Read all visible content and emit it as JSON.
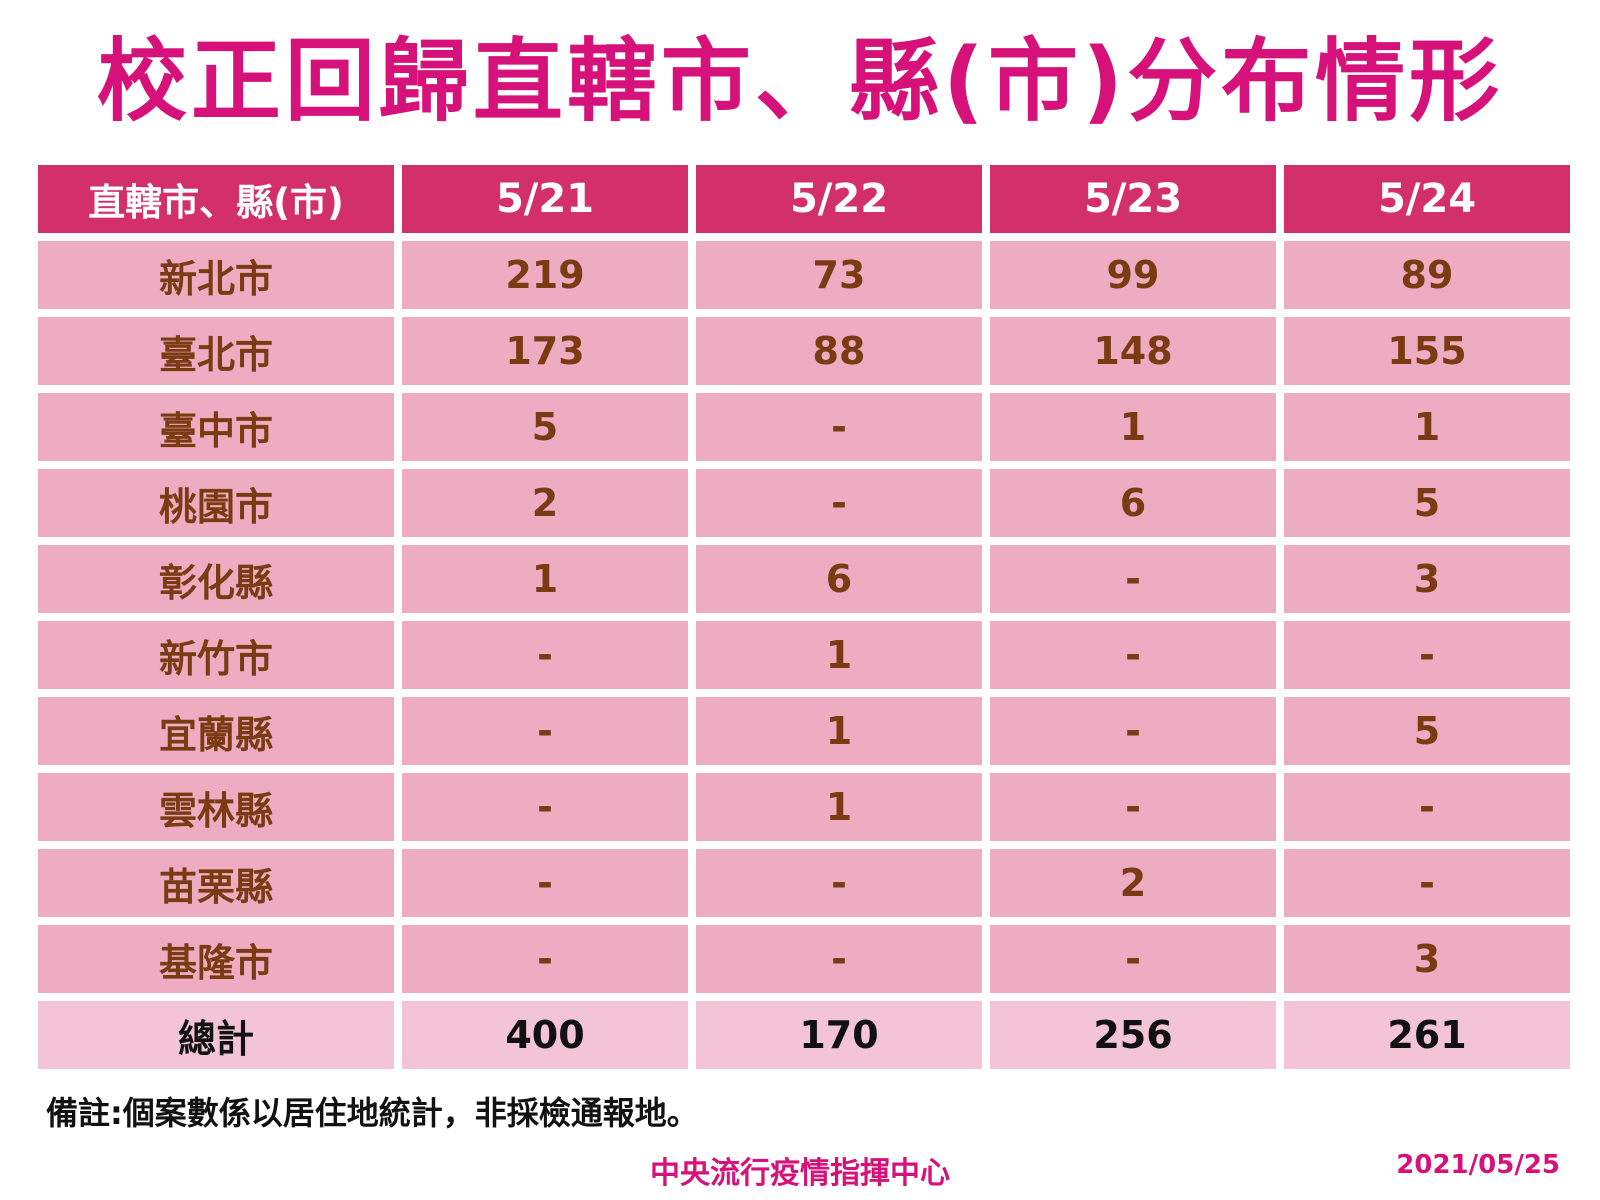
{
  "title": "校正回歸直轄市、縣(市)分布情形",
  "table": {
    "header": [
      "直轄市、縣(市)",
      "5/21",
      "5/22",
      "5/23",
      "5/24"
    ],
    "rows": [
      [
        "新北市",
        "219",
        "73",
        "99",
        "89"
      ],
      [
        "臺北市",
        "173",
        "88",
        "148",
        "155"
      ],
      [
        "臺中市",
        "5",
        "-",
        "1",
        "1"
      ],
      [
        "桃園市",
        "2",
        "-",
        "6",
        "5"
      ],
      [
        "彰化縣",
        "1",
        "6",
        "-",
        "3"
      ],
      [
        "新竹市",
        "-",
        "1",
        "-",
        "-"
      ],
      [
        "宜蘭縣",
        "-",
        "1",
        "-",
        "5"
      ],
      [
        "雲林縣",
        "-",
        "1",
        "-",
        "-"
      ],
      [
        "苗栗縣",
        "-",
        "-",
        "2",
        "-"
      ],
      [
        "基隆市",
        "-",
        "-",
        "-",
        "3"
      ]
    ],
    "total": [
      "總計",
      "400",
      "170",
      "256",
      "261"
    ]
  },
  "note": "備註:個案數係以居住地統計，非採檢通報地。",
  "footer": {
    "org": "中央流行疫情指揮中心",
    "date": "2021/05/25"
  },
  "colors": {
    "title": "#d6127a",
    "header_bg": "#d3306a",
    "row_bg": "#eeacc3",
    "total_bg": "#f3c4d5",
    "cell_text": "#7a3b12"
  }
}
